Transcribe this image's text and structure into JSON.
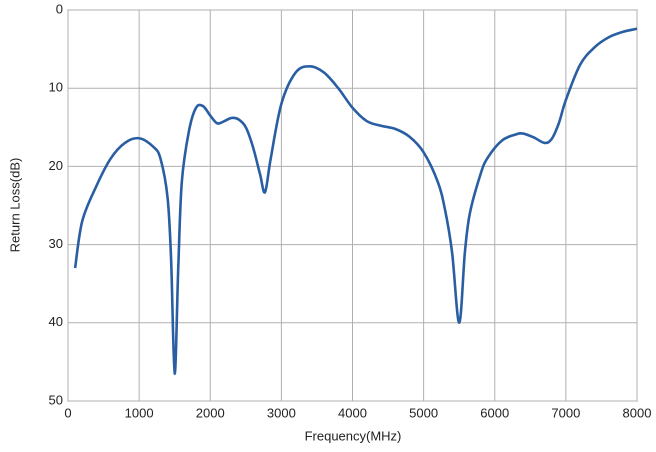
{
  "chart_data": {
    "type": "line",
    "x_label": "Frequency(MHz)",
    "y_label": "Return Loss(dB)",
    "x": [
      100,
      200,
      400,
      600,
      800,
      1000,
      1200,
      1300,
      1400,
      1450,
      1500,
      1550,
      1600,
      1700,
      1800,
      1900,
      2000,
      2100,
      2200,
      2300,
      2400,
      2500,
      2600,
      2700,
      2770,
      2850,
      3000,
      3200,
      3400,
      3600,
      3800,
      4000,
      4200,
      4400,
      4600,
      4800,
      5000,
      5200,
      5300,
      5400,
      5500,
      5580,
      5650,
      5800,
      5900,
      6100,
      6300,
      6400,
      6550,
      6700,
      6800,
      6900,
      7000,
      7200,
      7400,
      7600,
      7800,
      8000
    ],
    "values": [
      33,
      27,
      22.5,
      19,
      17,
      16.4,
      17.5,
      19,
      24,
      32,
      46.5,
      33,
      22,
      15.5,
      12.5,
      12.3,
      13.5,
      14.5,
      14.2,
      13.8,
      14,
      15,
      17.5,
      21,
      23.3,
      19,
      12,
      8,
      7.2,
      8,
      10,
      12.5,
      14.2,
      14.8,
      15.2,
      16.2,
      18.2,
      22,
      25.5,
      31,
      40,
      31,
      26,
      21,
      18.9,
      16.7,
      15.9,
      15.8,
      16.3,
      17,
      16.5,
      14.5,
      11.5,
      7,
      4.8,
      3.5,
      2.8,
      2.4
    ],
    "color": "#2a5ea3",
    "xlim": [
      0,
      8000
    ],
    "xticks": [
      0,
      1000,
      2000,
      3000,
      4000,
      5000,
      6000,
      7000,
      8000
    ],
    "ylim": [
      0,
      50
    ],
    "yticks": [
      0,
      10,
      20,
      30,
      40,
      50
    ],
    "y_inverted": true,
    "grid": true
  }
}
